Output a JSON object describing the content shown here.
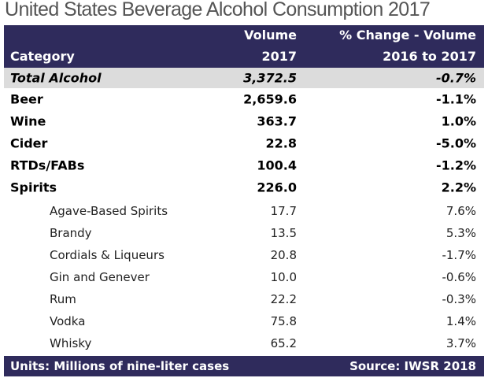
{
  "title": "United States Beverage Alcohol Consumption 2017",
  "header": {
    "category": "Category",
    "volume_line1": "Volume",
    "volume_line2": "2017",
    "change_line1": "% Change - Volume",
    "change_line2": "2016 to 2017"
  },
  "total": {
    "category": "Total Alcohol",
    "volume": "3,372.5",
    "change": "-0.7%"
  },
  "rows": [
    {
      "category": "Beer",
      "volume": "2,659.6",
      "change": "-1.1%"
    },
    {
      "category": "Wine",
      "volume": "363.7",
      "change": "1.0%"
    },
    {
      "category": "Cider",
      "volume": "22.8",
      "change": "-5.0%"
    },
    {
      "category": "RTDs/FABs",
      "volume": "100.4",
      "change": "-1.2%"
    },
    {
      "category": "Spirits",
      "volume": "226.0",
      "change": "2.2%"
    }
  ],
  "spirits_subrows": [
    {
      "category": "Agave-Based Spirits",
      "volume": "17.7",
      "change": "7.6%"
    },
    {
      "category": "Brandy",
      "volume": "13.5",
      "change": "5.3%"
    },
    {
      "category": "Cordials & Liqueurs",
      "volume": "20.8",
      "change": "-1.7%"
    },
    {
      "category": "Gin and Genever",
      "volume": "10.0",
      "change": "-0.6%"
    },
    {
      "category": "Rum",
      "volume": "22.2",
      "change": "-0.3%"
    },
    {
      "category": "Vodka",
      "volume": "75.8",
      "change": "1.4%"
    },
    {
      "category": "Whisky",
      "volume": "65.2",
      "change": "3.7%"
    }
  ],
  "footer": {
    "units": "Units: Millions of nine-liter cases",
    "source": "Source: IWSR 2018"
  },
  "colors": {
    "header_bg": "#2f2b5c",
    "total_bg": "#dcdcdc"
  }
}
